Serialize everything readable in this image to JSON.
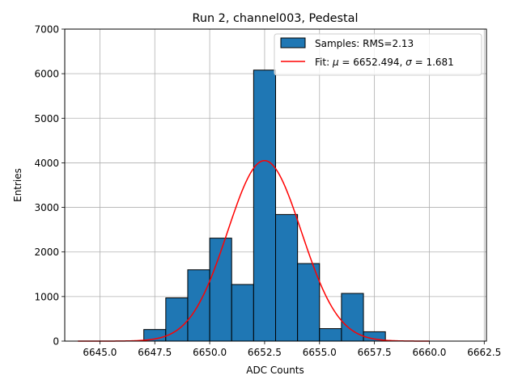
{
  "chart_data": {
    "type": "bar",
    "title": "Run 2, channel003, Pedestal",
    "xlabel": "ADC Counts",
    "ylabel": "Entries",
    "xlim": [
      6643.4,
      6662.6
    ],
    "ylim": [
      0,
      7000
    ],
    "grid": true,
    "legend_position": "top-right",
    "xticks": [
      6645.0,
      6647.5,
      6650.0,
      6652.5,
      6655.0,
      6657.5,
      6660.0,
      6662.5
    ],
    "xtick_labels": [
      "6645.0",
      "6647.5",
      "6650.0",
      "6652.5",
      "6655.0",
      "6657.5",
      "6660.0",
      "6662.5"
    ],
    "yticks": [
      0,
      1000,
      2000,
      3000,
      4000,
      5000,
      6000,
      7000
    ],
    "ytick_labels": [
      "0",
      "1000",
      "2000",
      "3000",
      "4000",
      "5000",
      "6000",
      "7000"
    ],
    "histogram": {
      "name": "Samples: RMS=2.13",
      "color": "#1f77b4",
      "edge_color": "#000000",
      "bin_edges": [
        6647.0,
        6648.0,
        6649.0,
        6650.0,
        6651.0,
        6652.0,
        6653.0,
        6654.0,
        6655.0,
        6656.0,
        6657.0,
        6658.0
      ],
      "counts": [
        260,
        970,
        1600,
        2310,
        1270,
        6080,
        2840,
        1740,
        280,
        1070,
        210
      ]
    },
    "fit": {
      "name": "Fit: μ = 6652.494, σ = 1.681",
      "label_prefix": "Fit: ",
      "mu_symbol": "μ",
      "mu_text": " = 6652.494, ",
      "sigma_symbol": "σ",
      "sigma_text": " = 1.681",
      "color": "#ff0000",
      "mu": 6652.494,
      "sigma": 1.681,
      "amplitude": 4050,
      "x_range": [
        6644.0,
        6660.0
      ]
    }
  }
}
